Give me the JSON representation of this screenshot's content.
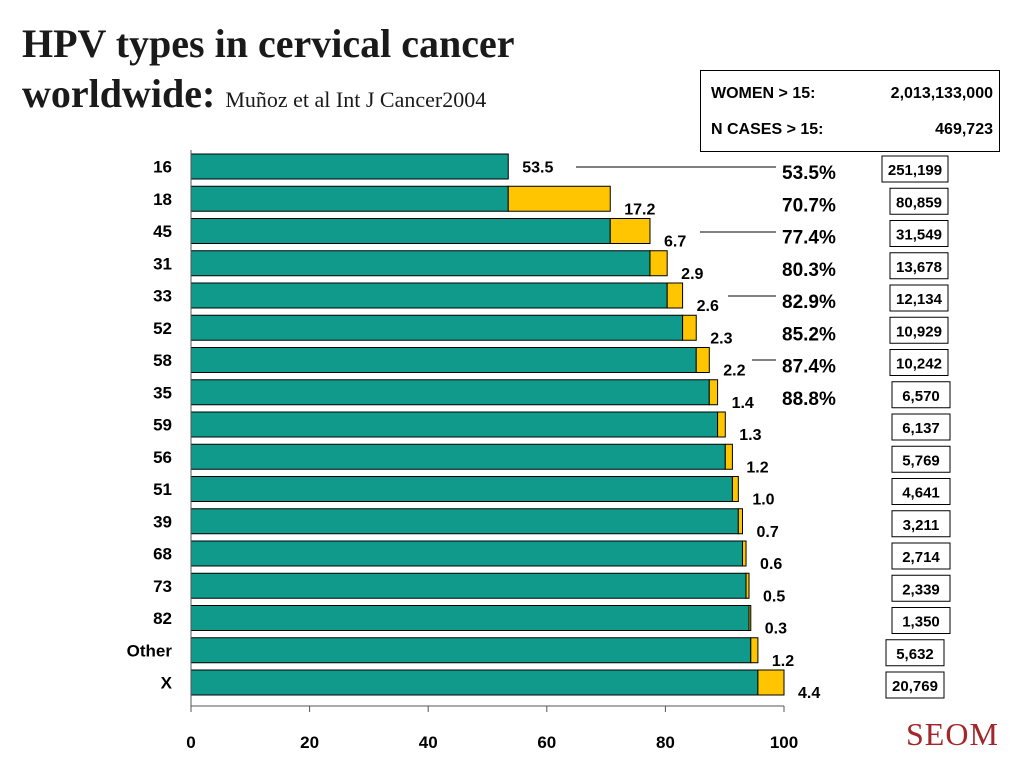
{
  "slide": {
    "title_line1": "HPV types in cervical cancer",
    "title_line2": "worldwide:",
    "citation": "Muñoz et al Int J Cancer2004",
    "info": {
      "women_label": "WOMEN > 15:",
      "women_value": "2,013,133,000",
      "cases_label": "N CASES > 15:",
      "cases_value": "469,723"
    },
    "logo_text": "SEOM"
  },
  "chart_data": {
    "type": "bar",
    "orientation": "horizontal",
    "stacked": true,
    "categories": [
      "16",
      "18",
      "45",
      "31",
      "33",
      "52",
      "58",
      "35",
      "59",
      "56",
      "51",
      "39",
      "68",
      "73",
      "82",
      "Other",
      "X"
    ],
    "series": [
      {
        "values": [
          0,
          53.5,
          70.7,
          77.4,
          80.3,
          82.9,
          85.2,
          87.4,
          88.8,
          90.1,
          91.3,
          92.3,
          93.0,
          93.6,
          94.1,
          94.4,
          95.6
        ],
        "color": "#0f9a8c"
      },
      {
        "values": [
          53.5,
          17.2,
          6.7,
          2.9,
          2.6,
          2.3,
          2.2,
          1.4,
          1.3,
          1.2,
          1.0,
          0.7,
          0.6,
          0.5,
          0.3,
          1.2,
          4.4
        ],
        "color": "#ffc600"
      }
    ],
    "value_labels": [
      "53.5",
      "17.2",
      "6.7",
      "2.9",
      "2.6",
      "2.3",
      "2.2",
      "1.4",
      "1.3",
      "1.2",
      "1.0",
      "0.7",
      "0.6",
      "0.5",
      "0.3",
      "1.2",
      "4.4"
    ],
    "cumulative_labels": [
      "53.5%",
      "70.7%",
      "77.4%",
      "80.3%",
      "82.9%",
      "85.2%",
      "87.4%",
      "88.8%"
    ],
    "case_counts": [
      "251,199",
      "80,859",
      "31,549",
      "13,678",
      "12,134",
      "10,929",
      "10,242",
      "6,570",
      "6,137",
      "5,769",
      "4,641",
      "3,211",
      "2,714",
      "2,339",
      "1,350",
      "5,632",
      "20,769"
    ],
    "xticks": [
      "0",
      "20",
      "40",
      "60",
      "80",
      "100"
    ],
    "xlim": [
      0,
      100
    ],
    "colors": {
      "bar_base": "#0f9a8c",
      "bar_increment": "#ffc600",
      "outline": "#000000"
    }
  }
}
